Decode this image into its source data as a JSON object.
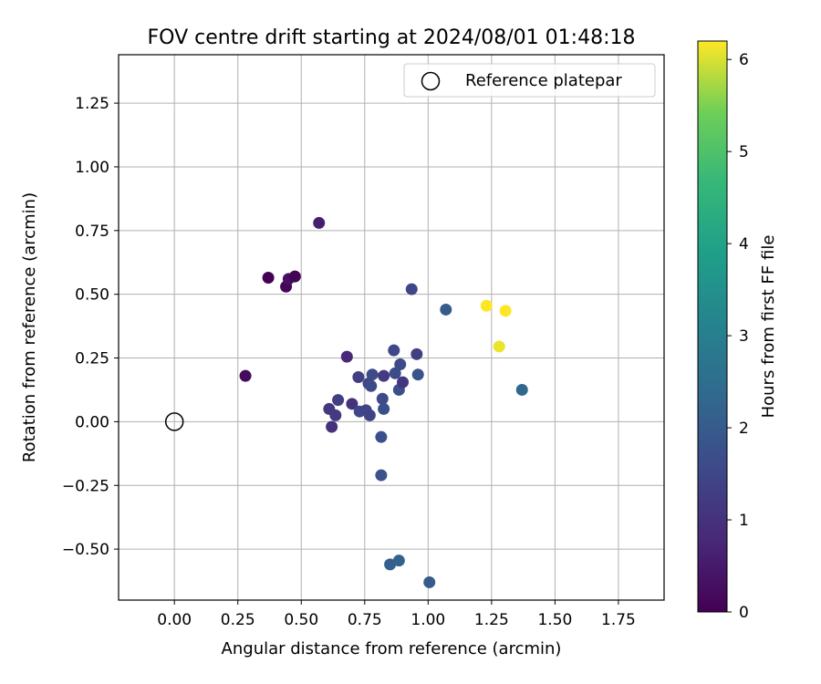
{
  "chart_data": {
    "type": "scatter",
    "title": "FOV centre drift starting at 2024/08/01 01:48:18",
    "xlabel": "Angular distance from reference (arcmin)",
    "ylabel": "Rotation from reference (arcmin)",
    "xlim": [
      -0.22,
      1.93
    ],
    "ylim": [
      -0.7,
      1.44
    ],
    "xticks": [
      "0.00",
      "0.25",
      "0.50",
      "0.75",
      "1.00",
      "1.25",
      "1.50",
      "1.75"
    ],
    "xtick_values": [
      0,
      0.25,
      0.5,
      0.75,
      1.0,
      1.25,
      1.5,
      1.75
    ],
    "yticks": [
      "−0.50",
      "−0.25",
      "0.00",
      "0.25",
      "0.50",
      "0.75",
      "1.00",
      "1.25"
    ],
    "ytick_values": [
      -0.5,
      -0.25,
      0,
      0.25,
      0.5,
      0.75,
      1.0,
      1.25
    ],
    "grid": true,
    "legend": {
      "position": "top-right",
      "label": "Reference platepar"
    },
    "reference": {
      "x": 0,
      "y": 0
    },
    "colorbar": {
      "label": "Hours from first FF file",
      "min": 0,
      "max": 6.2,
      "ticks": [
        "0",
        "1",
        "2",
        "3",
        "4",
        "5",
        "6"
      ],
      "tick_values": [
        0,
        1,
        2,
        3,
        4,
        5,
        6
      ],
      "colormap": "viridis"
    },
    "points": [
      {
        "x": 0.28,
        "y": 0.18,
        "hours": 0.2
      },
      {
        "x": 0.37,
        "y": 0.565,
        "hours": 0.0
      },
      {
        "x": 0.44,
        "y": 0.53,
        "hours": 0.1
      },
      {
        "x": 0.45,
        "y": 0.56,
        "hours": 0.3
      },
      {
        "x": 0.475,
        "y": 0.57,
        "hours": 0.05
      },
      {
        "x": 0.57,
        "y": 0.78,
        "hours": 0.6
      },
      {
        "x": 0.61,
        "y": 0.05,
        "hours": 1.1
      },
      {
        "x": 0.62,
        "y": -0.02,
        "hours": 1.0
      },
      {
        "x": 0.635,
        "y": 0.025,
        "hours": 1.2
      },
      {
        "x": 0.645,
        "y": 0.085,
        "hours": 1.3
      },
      {
        "x": 0.68,
        "y": 0.255,
        "hours": 0.8
      },
      {
        "x": 0.7,
        "y": 0.07,
        "hours": 1.0
      },
      {
        "x": 0.725,
        "y": 0.175,
        "hours": 1.3
      },
      {
        "x": 0.73,
        "y": 0.04,
        "hours": 1.5
      },
      {
        "x": 0.755,
        "y": 0.045,
        "hours": 1.4
      },
      {
        "x": 0.765,
        "y": 0.15,
        "hours": 1.5
      },
      {
        "x": 0.77,
        "y": 0.025,
        "hours": 1.4
      },
      {
        "x": 0.775,
        "y": 0.14,
        "hours": 1.6
      },
      {
        "x": 0.78,
        "y": 0.185,
        "hours": 1.6
      },
      {
        "x": 0.815,
        "y": -0.06,
        "hours": 1.7
      },
      {
        "x": 0.815,
        "y": -0.21,
        "hours": 1.8
      },
      {
        "x": 0.82,
        "y": 0.09,
        "hours": 1.6
      },
      {
        "x": 0.825,
        "y": 0.18,
        "hours": 1.2
      },
      {
        "x": 0.825,
        "y": 0.05,
        "hours": 1.7
      },
      {
        "x": 0.85,
        "y": -0.56,
        "hours": 2.1
      },
      {
        "x": 0.865,
        "y": 0.28,
        "hours": 1.5
      },
      {
        "x": 0.87,
        "y": 0.19,
        "hours": 1.6
      },
      {
        "x": 0.885,
        "y": -0.545,
        "hours": 2.2
      },
      {
        "x": 0.885,
        "y": 0.125,
        "hours": 1.7
      },
      {
        "x": 0.89,
        "y": 0.225,
        "hours": 1.6
      },
      {
        "x": 0.9,
        "y": 0.155,
        "hours": 1.1
      },
      {
        "x": 0.935,
        "y": 0.52,
        "hours": 1.5
      },
      {
        "x": 0.955,
        "y": 0.265,
        "hours": 1.3
      },
      {
        "x": 0.96,
        "y": 0.185,
        "hours": 1.8
      },
      {
        "x": 1.005,
        "y": -0.63,
        "hours": 2.0
      },
      {
        "x": 1.07,
        "y": 0.44,
        "hours": 2.0
      },
      {
        "x": 1.23,
        "y": 0.455,
        "hours": 6.2
      },
      {
        "x": 1.28,
        "y": 0.295,
        "hours": 6.1
      },
      {
        "x": 1.305,
        "y": 0.435,
        "hours": 6.2
      },
      {
        "x": 1.37,
        "y": 0.125,
        "hours": 2.3
      }
    ]
  }
}
